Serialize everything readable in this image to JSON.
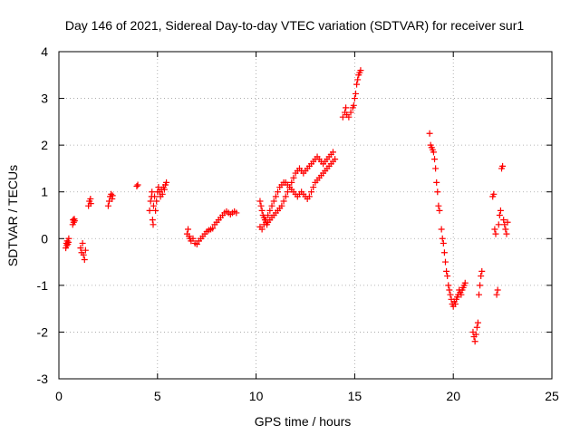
{
  "chart_data": {
    "type": "scatter",
    "title": "Day 146 of 2021, Sidereal Day-to-day VTEC variation (SDTVAR) for receiver sur1",
    "xlabel": "GPS time / hours",
    "ylabel": "SDTVAR / TECUs",
    "xlim": [
      0,
      25
    ],
    "ylim": [
      -3,
      4
    ],
    "xticks": [
      0,
      5,
      10,
      15,
      20,
      25
    ],
    "yticks": [
      -3,
      -2,
      -1,
      0,
      1,
      2,
      3,
      4
    ],
    "xtick_labels": [
      "0",
      "5",
      "10",
      "15",
      "20",
      "25"
    ],
    "ytick_labels": [
      "-3",
      "-2",
      "-1",
      "0",
      "1",
      "2",
      "3",
      "4"
    ],
    "grid": true,
    "marker": "+",
    "series": [
      {
        "name": "sur1",
        "color": "#ff0000",
        "points": [
          [
            0.35,
            -0.2
          ],
          [
            0.38,
            -0.1
          ],
          [
            0.4,
            -0.15
          ],
          [
            0.42,
            -0.05
          ],
          [
            0.45,
            -0.12
          ],
          [
            0.48,
            -0.08
          ],
          [
            0.5,
            0.0
          ],
          [
            0.7,
            0.3
          ],
          [
            0.72,
            0.4
          ],
          [
            0.75,
            0.35
          ],
          [
            0.78,
            0.42
          ],
          [
            0.8,
            0.38
          ],
          [
            1.1,
            -0.2
          ],
          [
            1.15,
            -0.3
          ],
          [
            1.2,
            -0.1
          ],
          [
            1.25,
            -0.35
          ],
          [
            1.3,
            -0.45
          ],
          [
            1.35,
            -0.25
          ],
          [
            1.5,
            0.7
          ],
          [
            1.55,
            0.8
          ],
          [
            1.6,
            0.85
          ],
          [
            1.62,
            0.75
          ],
          [
            2.5,
            0.7
          ],
          [
            2.55,
            0.8
          ],
          [
            2.6,
            0.9
          ],
          [
            2.65,
            0.95
          ],
          [
            2.7,
            0.85
          ],
          [
            2.72,
            0.92
          ],
          [
            3.95,
            1.12
          ],
          [
            4.0,
            1.15
          ],
          [
            4.6,
            0.6
          ],
          [
            4.65,
            0.8
          ],
          [
            4.7,
            0.9
          ],
          [
            4.72,
            1.0
          ],
          [
            4.75,
            0.4
          ],
          [
            4.78,
            0.3
          ],
          [
            4.8,
            0.7
          ],
          [
            4.85,
            0.9
          ],
          [
            4.9,
            0.6
          ],
          [
            4.95,
            0.8
          ],
          [
            5.0,
            1.0
          ],
          [
            5.05,
            1.1
          ],
          [
            5.1,
            1.0
          ],
          [
            5.15,
            0.9
          ],
          [
            5.2,
            1.05
          ],
          [
            5.25,
            0.95
          ],
          [
            5.3,
            1.1
          ],
          [
            5.35,
            1.05
          ],
          [
            5.4,
            1.15
          ],
          [
            5.45,
            1.2
          ],
          [
            6.5,
            0.1
          ],
          [
            6.55,
            0.2
          ],
          [
            6.6,
            0.05
          ],
          [
            6.65,
            0.0
          ],
          [
            6.7,
            -0.05
          ],
          [
            6.8,
            0.0
          ],
          [
            6.9,
            -0.1
          ],
          [
            7.0,
            -0.12
          ],
          [
            7.1,
            -0.05
          ],
          [
            7.2,
            0.0
          ],
          [
            7.3,
            0.05
          ],
          [
            7.4,
            0.1
          ],
          [
            7.5,
            0.15
          ],
          [
            7.6,
            0.18
          ],
          [
            7.7,
            0.2
          ],
          [
            7.8,
            0.22
          ],
          [
            7.9,
            0.3
          ],
          [
            8.0,
            0.35
          ],
          [
            8.1,
            0.4
          ],
          [
            8.2,
            0.45
          ],
          [
            8.3,
            0.5
          ],
          [
            8.4,
            0.55
          ],
          [
            8.5,
            0.58
          ],
          [
            8.6,
            0.55
          ],
          [
            8.7,
            0.52
          ],
          [
            8.8,
            0.55
          ],
          [
            8.9,
            0.58
          ],
          [
            9.0,
            0.55
          ],
          [
            10.2,
            0.8
          ],
          [
            10.25,
            0.7
          ],
          [
            10.3,
            0.6
          ],
          [
            10.35,
            0.5
          ],
          [
            10.4,
            0.45
          ],
          [
            10.45,
            0.4
          ],
          [
            10.5,
            0.35
          ],
          [
            10.55,
            0.3
          ],
          [
            10.6,
            0.35
          ],
          [
            10.7,
            0.4
          ],
          [
            10.8,
            0.45
          ],
          [
            10.9,
            0.5
          ],
          [
            11.0,
            0.55
          ],
          [
            11.1,
            0.6
          ],
          [
            11.2,
            0.65
          ],
          [
            11.3,
            0.7
          ],
          [
            11.4,
            0.8
          ],
          [
            11.5,
            0.9
          ],
          [
            11.6,
            1.0
          ],
          [
            11.7,
            1.1
          ],
          [
            11.8,
            1.2
          ],
          [
            11.9,
            1.3
          ],
          [
            12.0,
            1.4
          ],
          [
            12.1,
            1.45
          ],
          [
            12.2,
            1.5
          ],
          [
            12.3,
            1.45
          ],
          [
            12.4,
            1.4
          ],
          [
            12.5,
            1.45
          ],
          [
            12.6,
            1.5
          ],
          [
            12.7,
            1.55
          ],
          [
            12.8,
            1.6
          ],
          [
            12.9,
            1.65
          ],
          [
            13.0,
            1.7
          ],
          [
            13.1,
            1.75
          ],
          [
            13.2,
            1.7
          ],
          [
            13.3,
            1.65
          ],
          [
            13.4,
            1.6
          ],
          [
            13.5,
            1.65
          ],
          [
            13.6,
            1.7
          ],
          [
            13.7,
            1.75
          ],
          [
            13.8,
            1.8
          ],
          [
            13.9,
            1.85
          ],
          [
            10.2,
            0.25
          ],
          [
            10.3,
            0.2
          ],
          [
            10.4,
            0.3
          ],
          [
            10.5,
            0.4
          ],
          [
            10.6,
            0.5
          ],
          [
            10.7,
            0.6
          ],
          [
            10.8,
            0.7
          ],
          [
            10.9,
            0.8
          ],
          [
            11.0,
            0.9
          ],
          [
            11.1,
            1.0
          ],
          [
            11.2,
            1.1
          ],
          [
            11.3,
            1.15
          ],
          [
            11.4,
            1.2
          ],
          [
            11.5,
            1.2
          ],
          [
            11.6,
            1.15
          ],
          [
            11.7,
            1.1
          ],
          [
            11.8,
            1.05
          ],
          [
            11.9,
            1.0
          ],
          [
            12.0,
            0.95
          ],
          [
            12.1,
            0.9
          ],
          [
            12.2,
            0.95
          ],
          [
            12.3,
            1.0
          ],
          [
            12.4,
            0.95
          ],
          [
            12.5,
            0.9
          ],
          [
            12.6,
            0.85
          ],
          [
            12.7,
            0.9
          ],
          [
            12.8,
            1.0
          ],
          [
            12.9,
            1.1
          ],
          [
            13.0,
            1.2
          ],
          [
            13.1,
            1.25
          ],
          [
            13.2,
            1.3
          ],
          [
            13.3,
            1.35
          ],
          [
            13.4,
            1.4
          ],
          [
            13.5,
            1.45
          ],
          [
            13.6,
            1.5
          ],
          [
            13.7,
            1.55
          ],
          [
            13.8,
            1.6
          ],
          [
            13.9,
            1.65
          ],
          [
            14.0,
            1.7
          ],
          [
            14.4,
            2.6
          ],
          [
            14.5,
            2.7
          ],
          [
            14.55,
            2.8
          ],
          [
            14.6,
            2.65
          ],
          [
            14.7,
            2.6
          ],
          [
            14.8,
            2.7
          ],
          [
            14.9,
            2.8
          ],
          [
            14.95,
            2.85
          ],
          [
            15.0,
            3.0
          ],
          [
            15.05,
            3.1
          ],
          [
            15.1,
            3.3
          ],
          [
            15.15,
            3.4
          ],
          [
            15.2,
            3.5
          ],
          [
            15.25,
            3.55
          ],
          [
            15.3,
            3.6
          ],
          [
            18.8,
            2.25
          ],
          [
            18.85,
            2.0
          ],
          [
            18.9,
            1.95
          ],
          [
            18.95,
            1.9
          ],
          [
            19.0,
            1.85
          ],
          [
            19.05,
            1.7
          ],
          [
            19.1,
            1.5
          ],
          [
            19.15,
            1.2
          ],
          [
            19.2,
            1.0
          ],
          [
            19.25,
            0.7
          ],
          [
            19.3,
            0.6
          ],
          [
            19.4,
            0.2
          ],
          [
            19.45,
            0.0
          ],
          [
            19.5,
            -0.1
          ],
          [
            19.55,
            -0.3
          ],
          [
            19.6,
            -0.5
          ],
          [
            19.65,
            -0.7
          ],
          [
            19.7,
            -0.8
          ],
          [
            19.75,
            -1.0
          ],
          [
            19.8,
            -1.1
          ],
          [
            19.85,
            -1.2
          ],
          [
            19.9,
            -1.3
          ],
          [
            19.95,
            -1.4
          ],
          [
            20.0,
            -1.45
          ],
          [
            20.05,
            -1.35
          ],
          [
            20.1,
            -1.4
          ],
          [
            20.15,
            -1.3
          ],
          [
            20.2,
            -1.25
          ],
          [
            20.25,
            -1.2
          ],
          [
            20.3,
            -1.1
          ],
          [
            20.35,
            -1.15
          ],
          [
            20.4,
            -1.2
          ],
          [
            20.45,
            -1.1
          ],
          [
            20.5,
            -1.05
          ],
          [
            20.55,
            -1.0
          ],
          [
            20.6,
            -0.95
          ],
          [
            21.0,
            -2.0
          ],
          [
            21.05,
            -2.1
          ],
          [
            21.1,
            -2.2
          ],
          [
            21.15,
            -2.05
          ],
          [
            21.2,
            -1.9
          ],
          [
            21.25,
            -1.8
          ],
          [
            21.3,
            -1.2
          ],
          [
            21.35,
            -1.0
          ],
          [
            21.4,
            -0.8
          ],
          [
            21.45,
            -0.7
          ],
          [
            22.0,
            0.9
          ],
          [
            22.05,
            0.95
          ],
          [
            22.1,
            0.2
          ],
          [
            22.15,
            0.1
          ],
          [
            22.2,
            -1.2
          ],
          [
            22.25,
            -1.1
          ],
          [
            22.3,
            0.3
          ],
          [
            22.35,
            0.5
          ],
          [
            22.4,
            0.6
          ],
          [
            22.45,
            1.5
          ],
          [
            22.5,
            1.55
          ],
          [
            22.55,
            0.4
          ],
          [
            22.6,
            0.3
          ],
          [
            22.65,
            0.2
          ],
          [
            22.7,
            0.1
          ],
          [
            22.75,
            0.35
          ]
        ]
      }
    ]
  }
}
